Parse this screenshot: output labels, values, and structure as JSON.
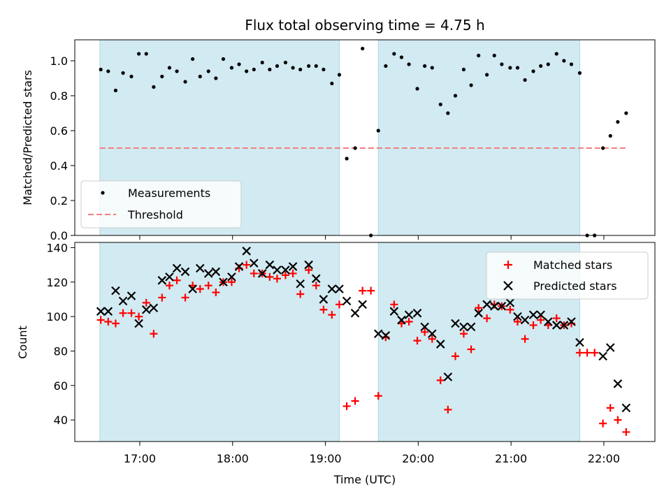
{
  "chart_data": {
    "type": "scatter",
    "title": "Flux total observing time = 4.75 h",
    "xlabel": "Time (UTC)",
    "xlim": [
      16.3,
      22.55
    ],
    "xticks": [
      17,
      18,
      19,
      20,
      21,
      22
    ],
    "xtick_labels": [
      "17:00",
      "18:00",
      "19:00",
      "20:00",
      "21:00",
      "22:00"
    ],
    "shaded_intervals": [
      [
        16.57,
        19.15
      ],
      [
        19.57,
        21.74
      ]
    ],
    "colors": {
      "shade": "#add8e6",
      "measurements": "#000000",
      "threshold": "#f08080",
      "matched": "#ff0000",
      "predicted": "#000000"
    },
    "panels": [
      {
        "ylabel": "Matched/Predicted stars",
        "ylim": [
          0,
          1.12
        ],
        "yticks": [
          0,
          0.2,
          0.4,
          0.6,
          0.8,
          1.0
        ],
        "ytick_labels": [
          "0.0",
          "0.2",
          "0.4",
          "0.6",
          "0.8",
          "1.0"
        ],
        "legend_position": "lower-left",
        "series": [
          {
            "name": "Measurements",
            "kind": "dot",
            "x": [
              16.58,
              16.66,
              16.74,
              16.82,
              16.91,
              16.99,
              17.07,
              17.15,
              17.24,
              17.32,
              17.4,
              17.49,
              17.57,
              17.65,
              17.74,
              17.82,
              17.9,
              17.99,
              18.07,
              18.15,
              18.23,
              18.32,
              18.4,
              18.48,
              18.57,
              18.65,
              18.73,
              18.82,
              18.9,
              18.98,
              19.07,
              19.15,
              19.23,
              19.32,
              19.4,
              19.49,
              19.57,
              19.65,
              19.74,
              19.82,
              19.9,
              19.99,
              20.07,
              20.15,
              20.24,
              20.32,
              20.4,
              20.49,
              20.57,
              20.65,
              20.74,
              20.82,
              20.9,
              20.99,
              21.07,
              21.15,
              21.24,
              21.32,
              21.4,
              21.49,
              21.57,
              21.65,
              21.74,
              21.82,
              21.9,
              21.99,
              22.07,
              22.15,
              22.24
            ],
            "y": [
              0.95,
              0.94,
              0.83,
              0.93,
              0.91,
              1.04,
              1.04,
              0.85,
              0.91,
              0.96,
              0.94,
              0.88,
              1.01,
              0.91,
              0.94,
              0.9,
              1.01,
              0.96,
              0.98,
              0.94,
              0.95,
              0.99,
              0.95,
              0.97,
              0.99,
              0.96,
              0.95,
              0.97,
              0.97,
              0.95,
              0.87,
              0.92,
              0.44,
              0.5,
              1.07,
              0.0,
              0.6,
              0.97,
              1.04,
              1.02,
              0.98,
              0.84,
              0.97,
              0.96,
              0.75,
              0.7,
              0.8,
              0.95,
              0.86,
              1.03,
              0.92,
              1.03,
              0.98,
              0.96,
              0.96,
              0.89,
              0.94,
              0.97,
              0.98,
              1.04,
              1.0,
              0.98,
              0.93,
              0.0,
              0.0,
              0.5,
              0.57,
              0.65,
              0.7
            ]
          },
          {
            "name": "Threshold",
            "kind": "dashed-line",
            "x": [
              16.57,
              22.24
            ],
            "y": [
              0.5,
              0.5
            ]
          }
        ]
      },
      {
        "ylabel": "Count",
        "ylim": [
          27.5,
          143
        ],
        "yticks": [
          40,
          60,
          80,
          100,
          120,
          140
        ],
        "ytick_labels": [
          "40",
          "60",
          "80",
          "100",
          "120",
          "140"
        ],
        "legend_position": "upper-right",
        "series": [
          {
            "name": "Matched stars",
            "kind": "plus",
            "x": [
              16.58,
              16.66,
              16.74,
              16.82,
              16.91,
              16.99,
              17.07,
              17.15,
              17.24,
              17.32,
              17.4,
              17.49,
              17.57,
              17.65,
              17.74,
              17.82,
              17.9,
              17.99,
              18.07,
              18.15,
              18.23,
              18.32,
              18.4,
              18.48,
              18.57,
              18.65,
              18.73,
              18.82,
              18.9,
              18.98,
              19.07,
              19.15,
              19.23,
              19.32,
              19.4,
              19.49,
              19.57,
              19.65,
              19.74,
              19.82,
              19.9,
              19.99,
              20.07,
              20.15,
              20.24,
              20.32,
              20.4,
              20.49,
              20.57,
              20.65,
              20.74,
              20.82,
              20.9,
              20.99,
              21.07,
              21.15,
              21.24,
              21.32,
              21.4,
              21.49,
              21.57,
              21.65,
              21.74,
              21.82,
              21.9,
              21.99,
              22.07,
              22.15,
              22.24
            ],
            "y": [
              98,
              97,
              96,
              102,
              102,
              100,
              108,
              90,
              111,
              118,
              121,
              111,
              118,
              116,
              118,
              114,
              120,
              120,
              128,
              130,
              125,
              125,
              123,
              122,
              124,
              125,
              113,
              127,
              118,
              104,
              101,
              107,
              48,
              51,
              115,
              115,
              54,
              88,
              107,
              96,
              97,
              86,
              91,
              87,
              63,
              46,
              77,
              90,
              81,
              105,
              99,
              107,
              106,
              104,
              97,
              87,
              95,
              98,
              95,
              99,
              95,
              96,
              79,
              79,
              79,
              38,
              47,
              40,
              33
            ]
          },
          {
            "name": "Predicted stars",
            "kind": "x",
            "x": [
              16.58,
              16.66,
              16.74,
              16.82,
              16.91,
              16.99,
              17.07,
              17.15,
              17.24,
              17.32,
              17.4,
              17.49,
              17.57,
              17.65,
              17.74,
              17.82,
              17.9,
              17.99,
              18.07,
              18.15,
              18.23,
              18.32,
              18.4,
              18.48,
              18.57,
              18.65,
              18.73,
              18.82,
              18.9,
              18.98,
              19.07,
              19.15,
              19.23,
              19.32,
              19.4,
              19.57,
              19.65,
              19.74,
              19.82,
              19.9,
              19.99,
              20.07,
              20.15,
              20.24,
              20.32,
              20.4,
              20.49,
              20.57,
              20.65,
              20.74,
              20.82,
              20.9,
              20.99,
              21.07,
              21.15,
              21.24,
              21.32,
              21.4,
              21.49,
              21.57,
              21.65,
              21.74,
              21.99,
              22.07,
              22.15,
              22.24
            ],
            "y": [
              103,
              103,
              115,
              109,
              112,
              96,
              104,
              105,
              121,
              123,
              128,
              126,
              116,
              128,
              125,
              126,
              120,
              123,
              129,
              138,
              131,
              125,
              130,
              127,
              127,
              129,
              119,
              130,
              122,
              110,
              116,
              116,
              109,
              102,
              107,
              90,
              89,
              103,
              98,
              101,
              102,
              94,
              90,
              84,
              65,
              96,
              94,
              94,
              102,
              107,
              106,
              106,
              108,
              100,
              98,
              101,
              101,
              97,
              95,
              95,
              97,
              85,
              77,
              82,
              61,
              47
            ]
          }
        ]
      }
    ]
  }
}
